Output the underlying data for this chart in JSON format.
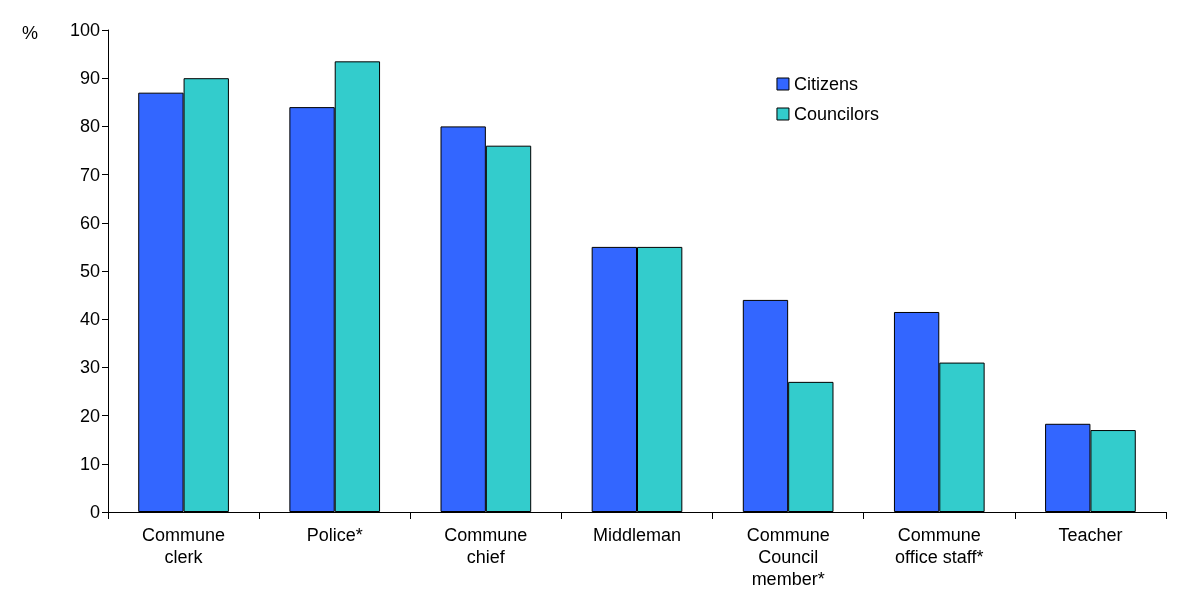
{
  "chart_data": {
    "type": "bar",
    "ylabel": "%",
    "categories": [
      "Commune\nclerk",
      "Police*",
      "Commune\nchief",
      "Middleman",
      "Commune\nCouncil\nmember*",
      "Commune\noffice staff*",
      "Teacher"
    ],
    "series": [
      {
        "name": "Citizens",
        "color": "#3366ff",
        "values": [
          87,
          84,
          80,
          55,
          44,
          41.5,
          18.3
        ]
      },
      {
        "name": "Councilors",
        "color": "#33cccc",
        "values": [
          90,
          93.5,
          76,
          55,
          27,
          31,
          17
        ]
      }
    ],
    "ylim": [
      0,
      100
    ],
    "yticks": [
      0,
      10,
      20,
      30,
      40,
      50,
      60,
      70,
      80,
      90,
      100
    ],
    "grid": false,
    "legend": "top right"
  }
}
